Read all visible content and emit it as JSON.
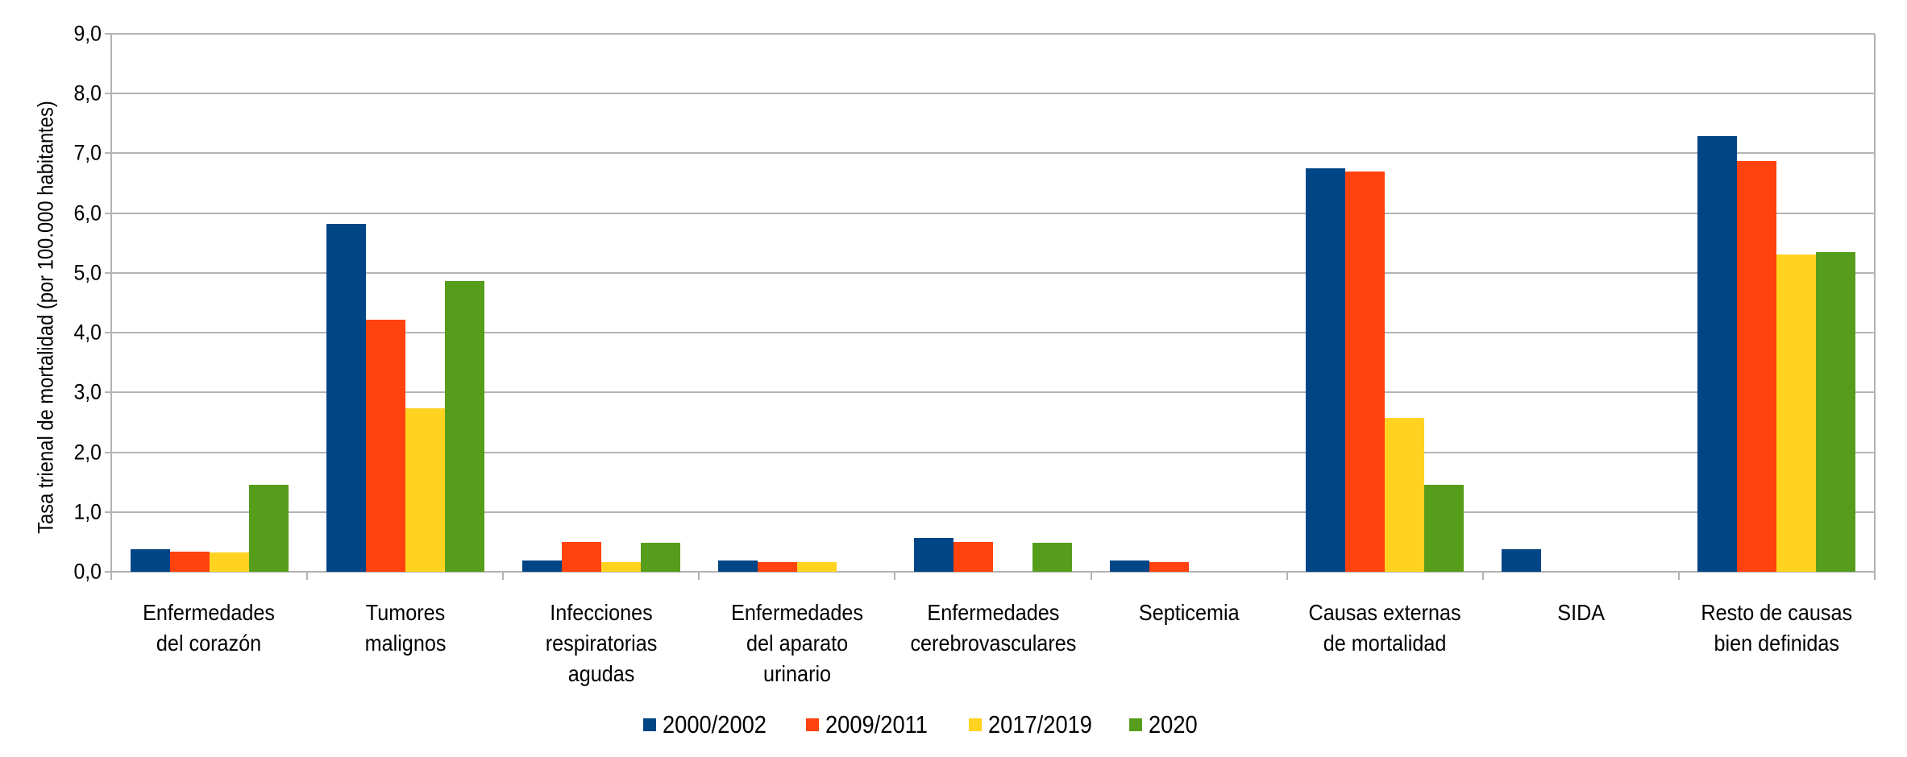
{
  "chart_data": {
    "type": "bar",
    "title": "",
    "xlabel": "",
    "ylabel": "Tasa trienal de mortalidad (por 100.000 habitantes)",
    "ylim": [
      0,
      9
    ],
    "yticks": [
      "0,0",
      "1,0",
      "2,0",
      "3,0",
      "4,0",
      "5,0",
      "6,0",
      "7,0",
      "8,0",
      "9,0"
    ],
    "grid": true,
    "legend_position": "bottom",
    "categories": [
      [
        "Enfermedades",
        "del corazón"
      ],
      [
        "Tumores",
        "malignos"
      ],
      [
        "Infecciones",
        "respiratorias",
        "agudas"
      ],
      [
        "Enfermedades",
        "del aparato",
        "urinario"
      ],
      [
        "Enfermedades",
        "cerebrovasculares"
      ],
      [
        "Septicemia"
      ],
      [
        "Causas externas",
        "de mortalidad"
      ],
      [
        "SIDA"
      ],
      [
        "Resto de causas",
        "bien definidas"
      ]
    ],
    "series": [
      {
        "name": "2000/2002",
        "color": "#004586",
        "values": [
          0.38,
          5.82,
          0.19,
          0.19,
          0.57,
          0.19,
          6.75,
          0.38,
          7.29
        ]
      },
      {
        "name": "2009/2011",
        "color": "#ff420e",
        "values": [
          0.34,
          4.22,
          0.5,
          0.16,
          0.5,
          0.16,
          6.7,
          0,
          6.87
        ]
      },
      {
        "name": "2017/2019",
        "color": "#ffd320",
        "values": [
          0.32,
          2.74,
          0.16,
          0.16,
          0,
          0,
          2.58,
          0,
          5.31
        ]
      },
      {
        "name": "2020",
        "color": "#579d1c",
        "values": [
          1.46,
          4.86,
          0.49,
          0,
          0.49,
          0,
          1.46,
          0,
          5.35
        ]
      }
    ]
  },
  "legend": {
    "items": [
      {
        "label": "2000/2002",
        "color": "#004586",
        "x": 0
      },
      {
        "label": "2009/2011",
        "color": "#ff420e",
        "x": 202
      },
      {
        "label": "2017/2019",
        "color": "#ffd320",
        "x": 404
      },
      {
        "label": "2020",
        "color": "#579d1c",
        "x": 603
      }
    ]
  },
  "colors": {
    "grid": "#b3b3b3",
    "text": "#000000",
    "background": "#ffffff"
  }
}
